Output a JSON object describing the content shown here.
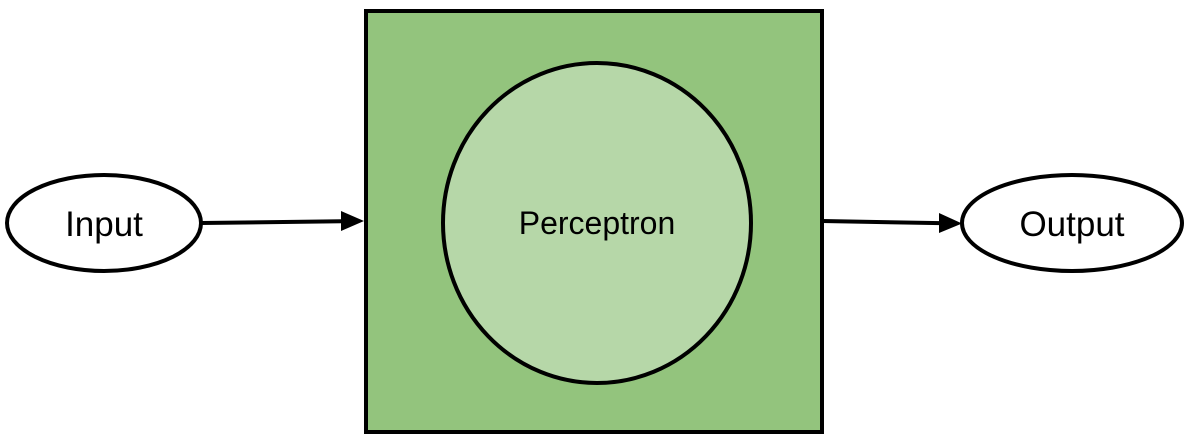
{
  "diagram": {
    "input_label": "Input",
    "model_label": "Perceptron",
    "output_label": "Output"
  },
  "colors": {
    "box_fill": "#93c47d",
    "circle_fill": "#b6d7a8",
    "stroke": "#000000",
    "ellipse_fill": "#ffffff"
  }
}
